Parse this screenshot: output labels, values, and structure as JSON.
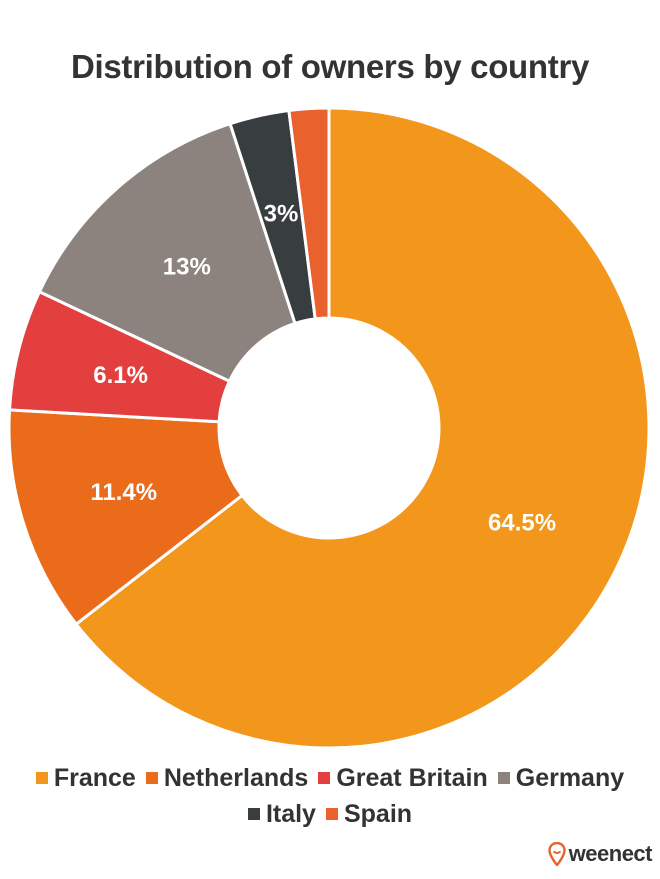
{
  "chart_data": {
    "type": "pie",
    "title": "Distribution of owners by country",
    "categories": [
      "France",
      "Netherlands",
      "Great Britain",
      "Germany",
      "Italy",
      "Spain"
    ],
    "values": [
      64.5,
      11.4,
      6.1,
      13,
      3,
      2
    ],
    "labels": [
      "64.5%",
      "11.4%",
      "6.1%",
      "13%",
      "3%",
      ""
    ],
    "colors": [
      "#f3961c",
      "#ea6b1a",
      "#e33f3f",
      "#8c837e",
      "#383d40",
      "#e9622e"
    ],
    "legend_position": "bottom",
    "donut": true
  },
  "brand": {
    "name": "weenect",
    "icon": "location-pin-icon",
    "color": "#e9622e"
  }
}
